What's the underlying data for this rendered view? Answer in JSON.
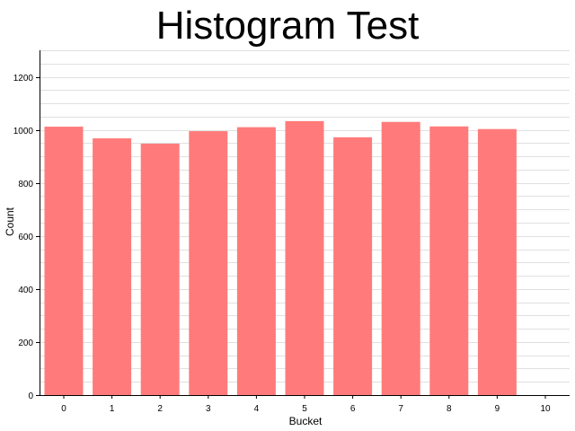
{
  "chart_data": {
    "type": "bar",
    "title": "Histogram Test",
    "xlabel": "Bucket",
    "ylabel": "Count",
    "categories": [
      "0",
      "1",
      "2",
      "3",
      "4",
      "5",
      "6",
      "7",
      "8",
      "9",
      "10"
    ],
    "values": [
      1012,
      968,
      948,
      995,
      1010,
      1033,
      972,
      1030,
      1013,
      1003,
      null
    ],
    "ylim": [
      0,
      1300
    ],
    "yticks": [
      0,
      200,
      400,
      600,
      800,
      1000,
      1200
    ],
    "grid": true,
    "bar_color": "#ff7b7b",
    "grid_color": "#e0e0e0"
  }
}
